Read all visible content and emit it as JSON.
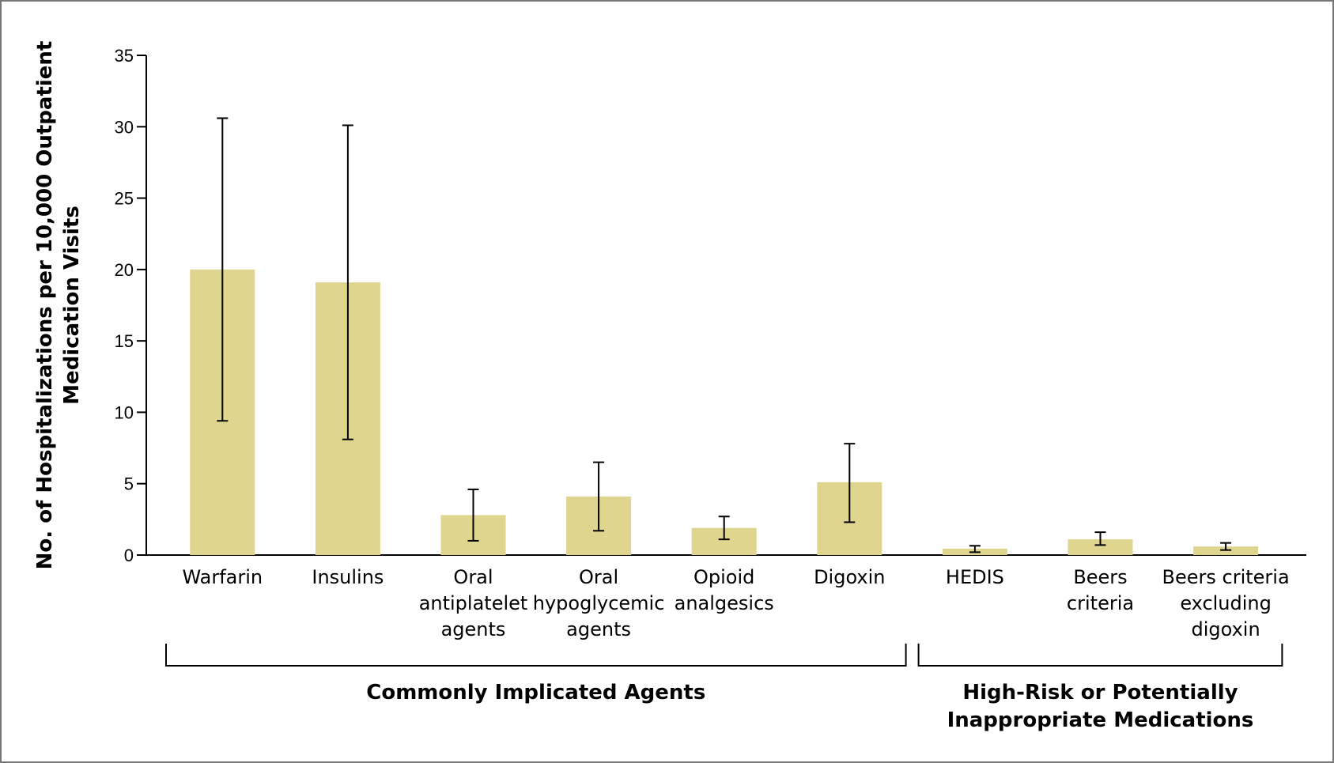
{
  "colors": {
    "bar": "#dfd58f",
    "axis": "#000000",
    "frame": "#777777"
  },
  "chart_data": {
    "type": "bar",
    "ylabel": [
      "No. of Hospitalizations per 10,000 Outpatient",
      "Medication Visits"
    ],
    "ylim": [
      0,
      35
    ],
    "yticks": [
      0,
      5,
      10,
      15,
      20,
      25,
      30,
      35
    ],
    "ytick_labels": [
      "0",
      "5",
      "10",
      "15",
      "20",
      "25",
      "30",
      "35"
    ],
    "categories": [
      {
        "lines": [
          "Warfarin"
        ],
        "value": 20.0,
        "err_low": 9.4,
        "err_high": 30.6
      },
      {
        "lines": [
          "Insulins"
        ],
        "value": 19.1,
        "err_low": 8.1,
        "err_high": 30.1
      },
      {
        "lines": [
          "Oral",
          "antiplatelet",
          "agents"
        ],
        "value": 2.8,
        "err_low": 1.0,
        "err_high": 4.6
      },
      {
        "lines": [
          "Oral",
          "hypoglycemic",
          "agents"
        ],
        "value": 4.1,
        "err_low": 1.7,
        "err_high": 6.5
      },
      {
        "lines": [
          "Opioid",
          "analgesics"
        ],
        "value": 1.9,
        "err_low": 1.1,
        "err_high": 2.7
      },
      {
        "lines": [
          "Digoxin"
        ],
        "value": 5.1,
        "err_low": 2.3,
        "err_high": 7.8
      },
      {
        "lines": [
          "HEDIS"
        ],
        "value": 0.45,
        "err_low": 0.2,
        "err_high": 0.65
      },
      {
        "lines": [
          "Beers",
          "criteria"
        ],
        "value": 1.1,
        "err_low": 0.7,
        "err_high": 1.6
      },
      {
        "lines": [
          "Beers criteria",
          "excluding",
          "digoxin"
        ],
        "value": 0.6,
        "err_low": 0.35,
        "err_high": 0.85
      }
    ],
    "groups": [
      {
        "lines": [
          "Commonly Implicated Agents"
        ],
        "from": 0,
        "to": 5
      },
      {
        "lines": [
          "High-Risk or Potentially",
          "Inappropriate Medications"
        ],
        "from": 6,
        "to": 8
      }
    ]
  }
}
